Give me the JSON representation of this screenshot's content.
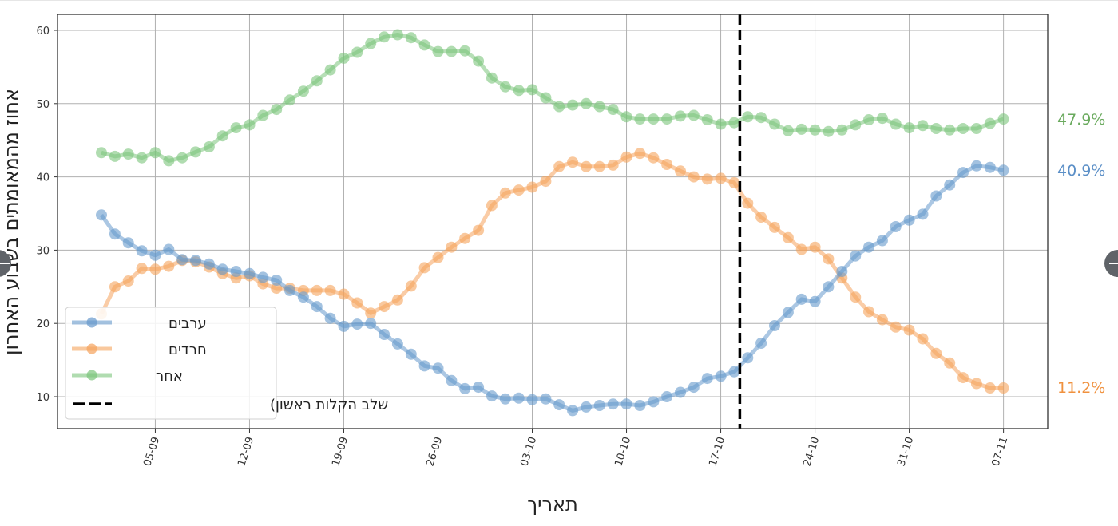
{
  "chart_data": {
    "type": "line",
    "title": "",
    "xlabel": "תאריך",
    "ylabel": "אחוז מהמאומתים בשבוע האחרון",
    "ylim": [
      5.5,
      62
    ],
    "yticks": [
      10,
      20,
      30,
      40,
      50,
      60
    ],
    "grid": true,
    "legend_position": "lower left",
    "xtick_labels": [
      "05-09",
      "12-09",
      "19-09",
      "26-09",
      "03-10",
      "10-10",
      "17-10",
      "24-10",
      "31-10",
      "07-11"
    ],
    "x_start": "01-09",
    "x_end": "07-11",
    "vline": {
      "label": "שלב הקלות ראשון)",
      "x": "18-10",
      "style": "dashed",
      "color": "#000000"
    },
    "series": [
      {
        "name": "ערבים",
        "color": "#6699cc",
        "end_label": "40.9%",
        "values": [
          34.8,
          32.2,
          31.0,
          29.9,
          29.3,
          30.1,
          28.7,
          28.6,
          28.1,
          27.4,
          27.1,
          26.8,
          26.3,
          25.9,
          24.5,
          23.6,
          22.3,
          20.7,
          19.6,
          19.9,
          20.0,
          18.5,
          17.2,
          15.8,
          14.2,
          13.9,
          12.2,
          11.1,
          11.3,
          10.1,
          9.7,
          9.8,
          9.6,
          9.7,
          8.9,
          8.1,
          8.6,
          8.8,
          9.0,
          9.0,
          8.8,
          9.3,
          10.0,
          10.6,
          11.3,
          12.5,
          12.8,
          13.4,
          15.3,
          17.3,
          19.7,
          21.5,
          23.3,
          23.0,
          25.0,
          27.1,
          29.2,
          30.4,
          31.3,
          33.2,
          34.1,
          34.9,
          37.4,
          38.9,
          40.6,
          41.5,
          41.3,
          40.9
        ]
      },
      {
        "name": "חרדים",
        "color": "#f5a35c",
        "end_label": "11.2%",
        "values": [
          21.3,
          25.0,
          25.8,
          27.5,
          27.4,
          27.8,
          28.6,
          28.4,
          27.7,
          26.8,
          26.2,
          26.5,
          25.4,
          24.8,
          24.8,
          24.5,
          24.5,
          24.5,
          24.0,
          22.8,
          21.4,
          22.3,
          23.2,
          25.1,
          27.6,
          29.0,
          30.4,
          31.6,
          32.7,
          36.1,
          37.8,
          38.2,
          38.6,
          39.4,
          41.4,
          42.0,
          41.4,
          41.4,
          41.6,
          42.7,
          43.2,
          42.6,
          41.7,
          40.8,
          40.0,
          39.7,
          39.8,
          39.2,
          36.4,
          34.5,
          33.1,
          31.7,
          30.1,
          30.4,
          28.8,
          26.2,
          23.6,
          21.6,
          20.5,
          19.5,
          19.1,
          17.9,
          15.9,
          14.6,
          12.6,
          11.8,
          11.2,
          11.2
        ]
      },
      {
        "name": "אחר",
        "color": "#7cc47c",
        "end_label": "47.9%",
        "values": [
          43.3,
          42.8,
          43.1,
          42.6,
          43.3,
          42.2,
          42.6,
          43.4,
          44.1,
          45.6,
          46.7,
          47.1,
          48.4,
          49.2,
          50.5,
          51.7,
          53.1,
          54.6,
          56.2,
          57.0,
          58.2,
          59.1,
          59.4,
          59.0,
          58.0,
          57.1,
          57.1,
          57.2,
          55.8,
          53.5,
          52.3,
          51.8,
          51.9,
          50.8,
          49.6,
          49.8,
          50.0,
          49.6,
          49.2,
          48.2,
          47.9,
          47.9,
          47.9,
          48.3,
          48.4,
          47.8,
          47.2,
          47.4,
          48.2,
          48.1,
          47.2,
          46.3,
          46.5,
          46.4,
          46.2,
          46.4,
          47.1,
          47.8,
          48.0,
          47.2,
          46.7,
          47.0,
          46.6,
          46.4,
          46.6,
          46.6,
          47.3,
          47.9
        ]
      }
    ]
  },
  "legend": {
    "items": [
      {
        "label": "ערבים",
        "color": "#6699cc"
      },
      {
        "label": "חרדים",
        "color": "#f5a35c"
      },
      {
        "label": "אחר",
        "color": "#7cc47c"
      },
      {
        "label": "שלב הקלות ראשון)",
        "color": "#000000"
      }
    ]
  },
  "end_labels": {
    "green": "47.9%",
    "blue": "40.9%",
    "orange": "11.2%"
  },
  "axis": {
    "xlabel": "תאריך",
    "ylabel": "אחוז מהמאומתים בשבוע האחרון"
  }
}
